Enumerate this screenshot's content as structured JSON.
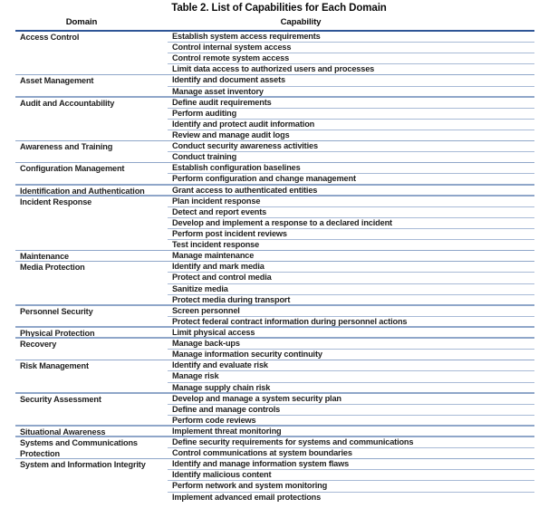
{
  "title": "Table 2. List of Capabilities for Each Domain",
  "columns": {
    "domain": "Domain",
    "capability": "Capability"
  },
  "colors": {
    "header_line": "#2e5596",
    "group_line": "#8fa6c9",
    "row_line": "#a8bad6",
    "text": "#1f1f1f"
  },
  "groups": [
    {
      "domain": "Access Control",
      "capabilities": [
        "Establish system access requirements",
        "Control internal system access",
        "Control remote system access",
        "Limit data access to authorized users and processes"
      ]
    },
    {
      "domain": "Asset Management",
      "capabilities": [
        "Identify and document assets",
        "Manage asset inventory"
      ]
    },
    {
      "domain": "Audit and Accountability",
      "capabilities": [
        "Define audit requirements",
        "Perform auditing",
        "Identify and protect audit information",
        "Review and manage audit logs"
      ]
    },
    {
      "domain": "Awareness and Training",
      "capabilities": [
        "Conduct security awareness activities",
        "Conduct training"
      ]
    },
    {
      "domain": "Configuration Management",
      "capabilities": [
        "Establish configuration baselines",
        "Perform configuration and change management"
      ]
    },
    {
      "domain": "Identification and Authentication",
      "capabilities": [
        "Grant access to authenticated entities"
      ]
    },
    {
      "domain": "Incident Response",
      "capabilities": [
        "Plan incident response",
        "Detect and report events",
        "Develop and implement a response to a declared incident",
        "Perform post incident reviews",
        "Test incident response"
      ]
    },
    {
      "domain": "Maintenance",
      "capabilities": [
        "Manage maintenance"
      ]
    },
    {
      "domain": "Media Protection",
      "capabilities": [
        "Identify and mark media",
        "Protect and control media",
        "Sanitize media",
        "Protect media during transport"
      ]
    },
    {
      "domain": "Personnel Security",
      "capabilities": [
        "Screen personnel",
        "Protect federal contract information during personnel actions"
      ]
    },
    {
      "domain": "Physical Protection",
      "capabilities": [
        "Limit physical access"
      ]
    },
    {
      "domain": "Recovery",
      "capabilities": [
        "Manage back-ups",
        "Manage information security continuity"
      ]
    },
    {
      "domain": "Risk Management",
      "capabilities": [
        "Identify and evaluate risk",
        "Manage risk",
        "Manage supply chain risk"
      ]
    },
    {
      "domain": "Security Assessment",
      "capabilities": [
        "Develop and manage a system security plan",
        "Define and manage controls",
        "Perform code reviews"
      ]
    },
    {
      "domain": "Situational Awareness",
      "capabilities": [
        "Implement threat monitoring"
      ]
    },
    {
      "domain": "Systems and Communications Protection",
      "capabilities": [
        "Define security requirements for systems and communications",
        "Control communications at system boundaries"
      ]
    },
    {
      "domain": "System and Information Integrity",
      "capabilities": [
        "Identify and manage information system flaws",
        "Identify malicious content",
        "Perform network and system monitoring",
        "Implement advanced email protections"
      ]
    }
  ]
}
